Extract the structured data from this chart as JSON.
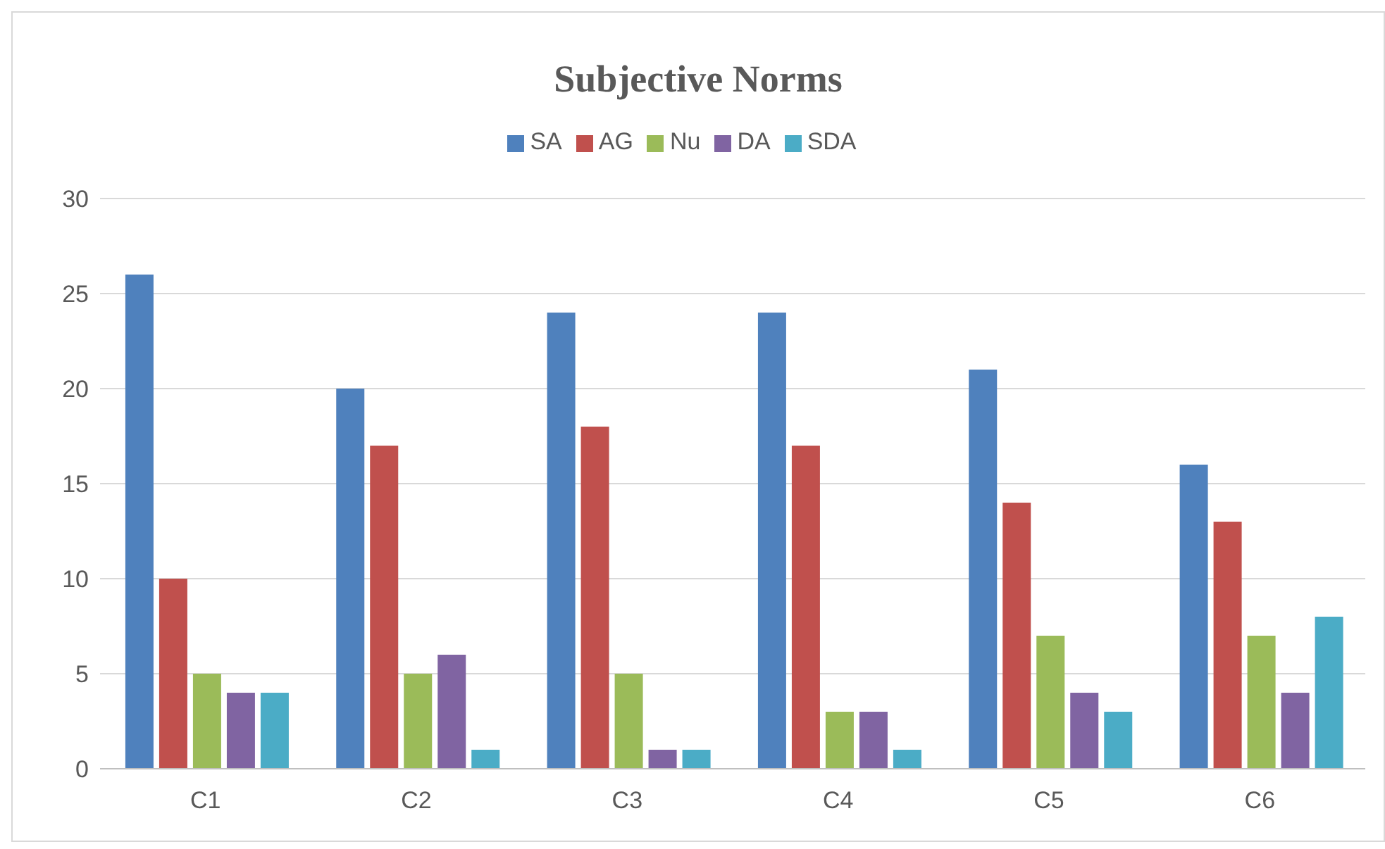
{
  "chart_data": {
    "type": "bar",
    "title": "Subjective Norms",
    "categories": [
      "C1",
      "C2",
      "C3",
      "C4",
      "C5",
      "C6"
    ],
    "series": [
      {
        "name": "SA",
        "color": "#4f81bd",
        "values": [
          26,
          20,
          24,
          24,
          21,
          16
        ]
      },
      {
        "name": "AG",
        "color": "#c0504d",
        "values": [
          10,
          17,
          18,
          17,
          14,
          13
        ]
      },
      {
        "name": "Nu",
        "color": "#9bbb59",
        "values": [
          5,
          5,
          5,
          3,
          7,
          7
        ]
      },
      {
        "name": "DA",
        "color": "#8064a2",
        "values": [
          4,
          6,
          1,
          3,
          4,
          4
        ]
      },
      {
        "name": "SDA",
        "color": "#4bacc6",
        "values": [
          4,
          1,
          1,
          1,
          3,
          8
        ]
      }
    ],
    "ylim": [
      0,
      30
    ],
    "yticks": [
      0,
      5,
      10,
      15,
      20,
      25,
      30
    ],
    "grid": "y",
    "legend": "top"
  }
}
